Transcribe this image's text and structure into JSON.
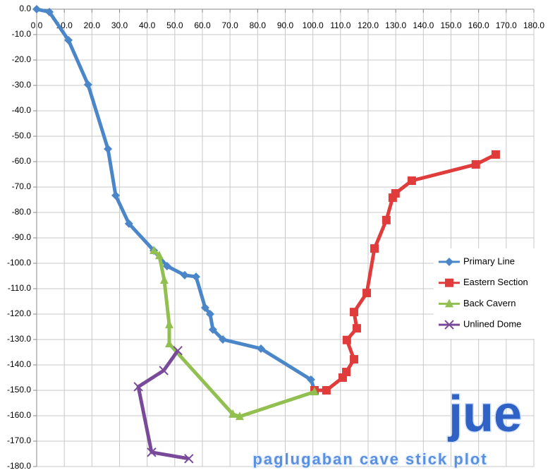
{
  "chart_data": {
    "type": "line",
    "annotations": [
      "jue",
      "paglugaban cave stick plot"
    ],
    "xlim": [
      0,
      180
    ],
    "ylim": [
      -180,
      0
    ],
    "grid": true,
    "legend": "right",
    "xticks": [
      {
        "value": 0,
        "label": "0.0"
      },
      {
        "value": 10,
        "label": "10.0"
      },
      {
        "value": 20,
        "label": "20.0"
      },
      {
        "value": 30,
        "label": "30.0"
      },
      {
        "value": 40,
        "label": "40.0"
      },
      {
        "value": 50,
        "label": "50.0"
      },
      {
        "value": 60,
        "label": "60.0"
      },
      {
        "value": 70,
        "label": "70.0"
      },
      {
        "value": 80,
        "label": "80.0"
      },
      {
        "value": 90,
        "label": "90.0"
      },
      {
        "value": 100,
        "label": "100.0"
      },
      {
        "value": 110,
        "label": "110.0"
      },
      {
        "value": 120,
        "label": "120.0"
      },
      {
        "value": 130,
        "label": "130.0"
      },
      {
        "value": 140,
        "label": "140.0"
      },
      {
        "value": 150,
        "label": "150.0"
      },
      {
        "value": 160,
        "label": "160.0"
      },
      {
        "value": 170,
        "label": "170.0"
      },
      {
        "value": 180,
        "label": "180.0"
      }
    ],
    "yticks": [
      {
        "value": 0,
        "label": "0.0"
      },
      {
        "value": -10,
        "label": "-10.0"
      },
      {
        "value": -20,
        "label": "-20.0"
      },
      {
        "value": -30,
        "label": "-30.0"
      },
      {
        "value": -40,
        "label": "-40.0"
      },
      {
        "value": -50,
        "label": "-50.0"
      },
      {
        "value": -60,
        "label": "-60.0"
      },
      {
        "value": -70,
        "label": "-70.0"
      },
      {
        "value": -80,
        "label": "-80.0"
      },
      {
        "value": -90,
        "label": "-90.0"
      },
      {
        "value": -100,
        "label": "-100.0"
      },
      {
        "value": -110,
        "label": "-110.0"
      },
      {
        "value": -120,
        "label": "-120.0"
      },
      {
        "value": -130,
        "label": "-130.0"
      },
      {
        "value": -140,
        "label": "-140.0"
      },
      {
        "value": -150,
        "label": "-150.0"
      },
      {
        "value": -160,
        "label": "-160.0"
      },
      {
        "value": -170,
        "label": "-170.0"
      },
      {
        "value": -180,
        "label": "-180.0"
      }
    ],
    "series": [
      {
        "name": "Primary Line",
        "color": "#4a86c8",
        "marker": "diamond",
        "x": [
          0,
          4.6,
          11.5,
          18.6,
          25.8,
          28.6,
          33.4,
          42.4,
          47.2,
          53.6,
          57.7,
          61.0,
          62.8,
          63.8,
          67.4,
          81.2,
          99.3,
          100.6
        ],
        "values": [
          0,
          -1.1,
          -12.2,
          -29.7,
          -55,
          -73.3,
          -84.4,
          -95,
          -101.1,
          -104.7,
          -105.3,
          -117.5,
          -120,
          -126.1,
          -130,
          -133.6,
          -145.8,
          -150
        ]
      },
      {
        "name": "Eastern Section",
        "color": "#e03c3c",
        "marker": "square",
        "x": [
          100.6,
          104.9,
          110.8,
          112.1,
          114.9,
          112.3,
          115.9,
          114.9,
          119.5,
          122.3,
          126.6,
          128.9,
          129.9,
          135.8,
          159,
          166.2
        ],
        "values": [
          -150,
          -150,
          -145,
          -142.8,
          -137.8,
          -130.2,
          -125.6,
          -119.2,
          -111.7,
          -94.2,
          -83,
          -74.2,
          -72.5,
          -67.5,
          -61.1,
          -57.2
        ]
      },
      {
        "name": "Back Cavern",
        "color": "#92c050",
        "marker": "triangle",
        "x": [
          42.4,
          44.4,
          46.2,
          48,
          48,
          71,
          73.5,
          100.6
        ],
        "values": [
          -95,
          -97,
          -106.7,
          -124.2,
          -131.7,
          -159.4,
          -160.3,
          -150.6
        ]
      },
      {
        "name": "Unlined Dome",
        "color": "#7a4a9a",
        "marker": "x",
        "x": [
          51.1,
          46,
          36.8,
          41.6,
          55.1
        ],
        "values": [
          -134.4,
          -142.2,
          -148.6,
          -174.4,
          -176.9
        ]
      }
    ]
  }
}
